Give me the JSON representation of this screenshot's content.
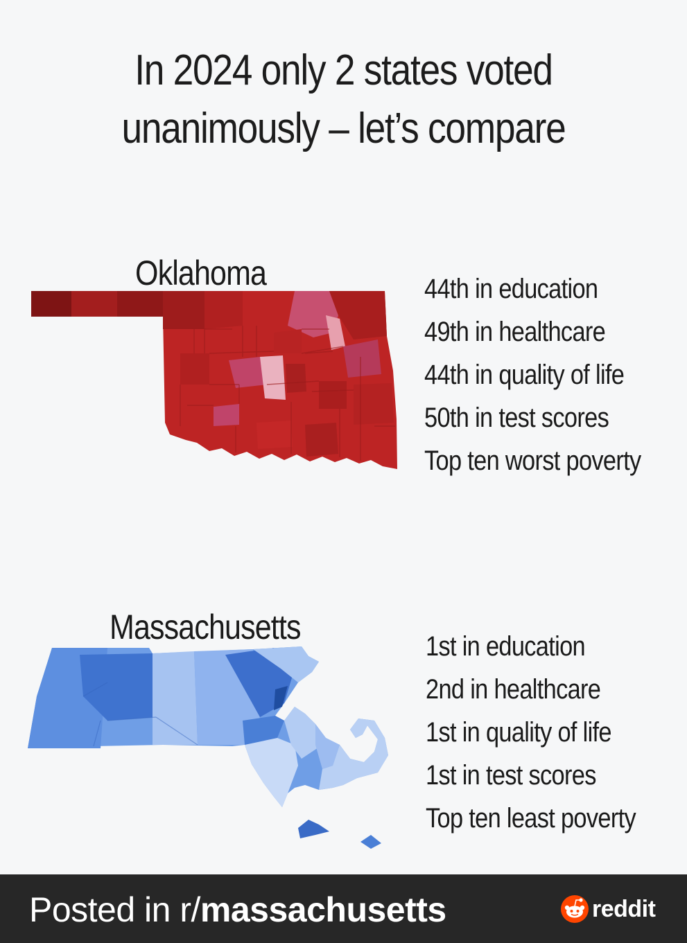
{
  "title": {
    "line1": "In 2024 only 2 states voted",
    "line2": "unanimously – let’s compare"
  },
  "oklahoma": {
    "name": "Oklahoma",
    "stats": [
      "44th in education",
      "49th in healthcare",
      "44th in quality of life",
      "50th in test scores",
      "Top ten worst poverty"
    ],
    "color": "#c62828"
  },
  "massachusetts": {
    "name": "Massachusetts",
    "stats": [
      "1st in education",
      "2nd in healthcare",
      "1st in quality of life",
      "1st in test scores",
      "Top ten least poverty"
    ],
    "color": "#4a86d8"
  },
  "footer": {
    "prefix": "Posted in r/",
    "subreddit": "massachusetts",
    "brand": "reddit",
    "brand_icon": "reddit-alien-icon"
  }
}
